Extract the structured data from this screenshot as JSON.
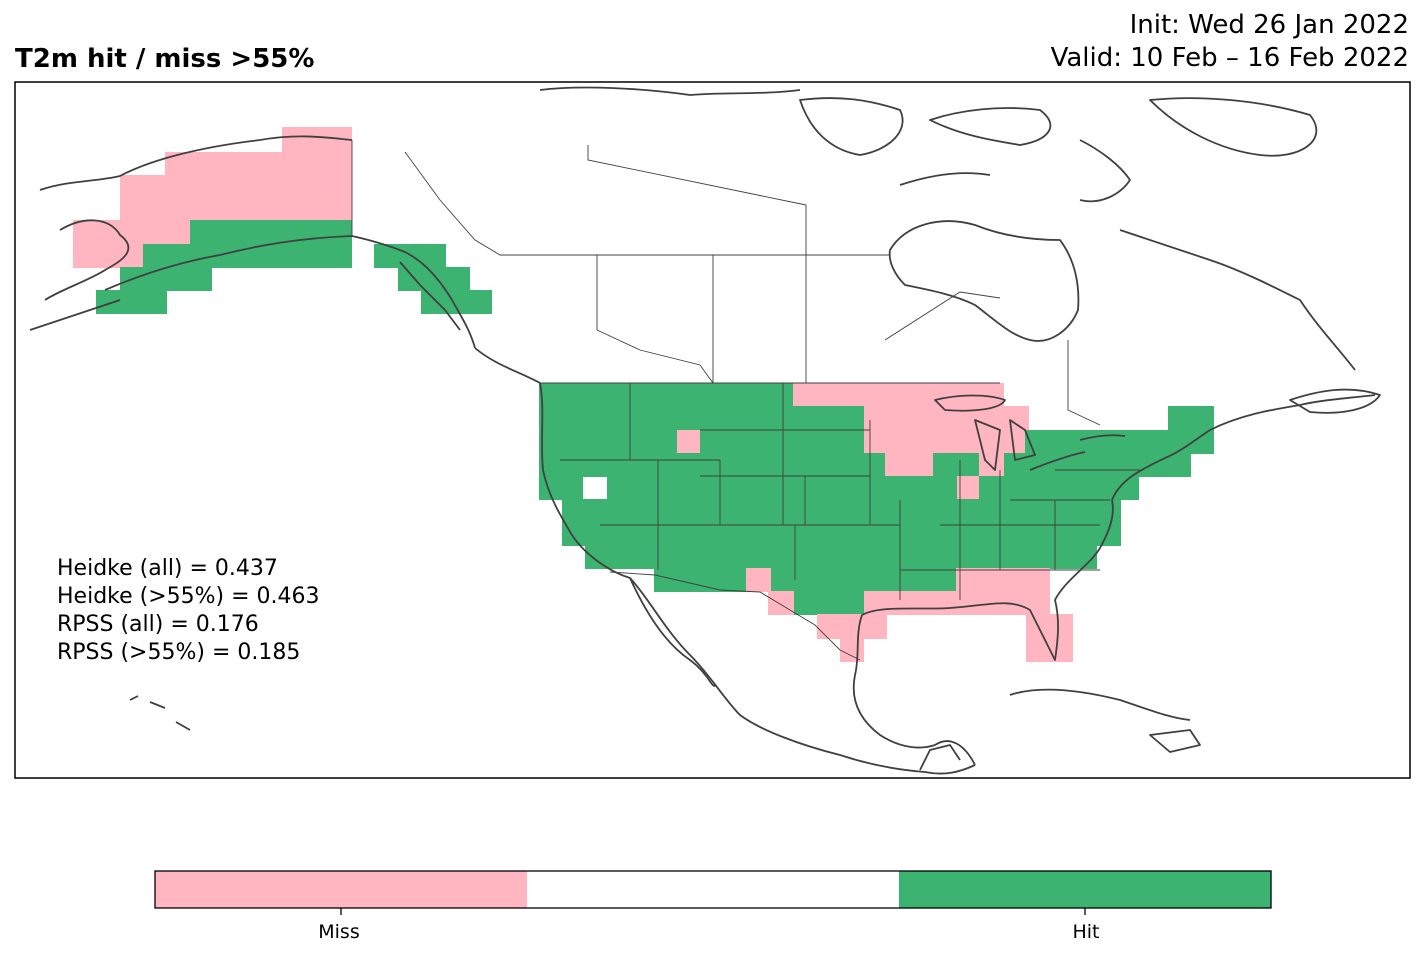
{
  "header": {
    "title": "T2m hit / miss  >55%",
    "init": "Init: Wed 26 Jan 2022",
    "valid": "Valid: 10 Feb – 16 Feb 2022"
  },
  "stats": [
    "Heidke (all) = 0.437",
    "Heidke (>55%) = 0.463",
    "RPSS (all) = 0.176",
    "RPSS (>55%) = 0.185"
  ],
  "colors": {
    "miss": "#ffb6c1",
    "neutral": "#ffffff",
    "hit": "#3cb371",
    "coast": "#404040"
  },
  "colorbar": {
    "labels": [
      "Miss",
      "Hit"
    ],
    "colors": [
      "#ffb6c1",
      "#ffffff",
      "#3cb371"
    ]
  }
}
